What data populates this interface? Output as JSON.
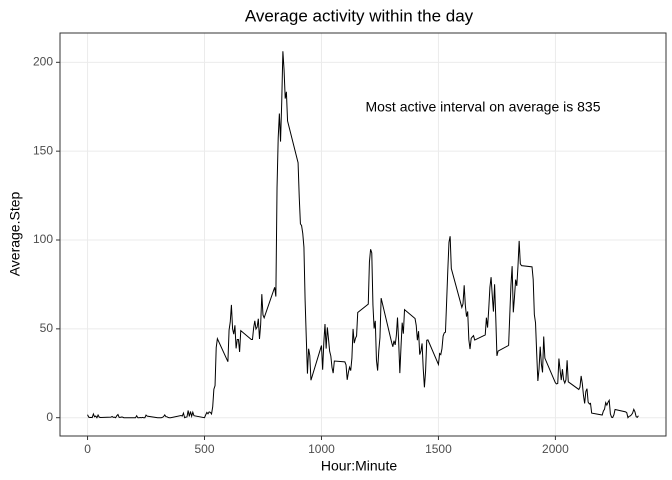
{
  "chart_data": {
    "type": "line",
    "title": "Average activity within the day",
    "x_label": "Hour:Minute",
    "y_label": "Average.Step",
    "annotation": "Most active interval on average is  835",
    "color": "#000000",
    "grid": true,
    "xlim": [
      -117.75,
      2472.75
    ],
    "xticks": [
      0,
      500,
      1000,
      1500,
      2000
    ],
    "ylim": [
      -10.3,
      216.5
    ],
    "yticks": [
      0,
      50,
      100,
      150,
      200
    ],
    "x": [
      0,
      5,
      10,
      15,
      20,
      25,
      30,
      35,
      40,
      45,
      50,
      55,
      100,
      105,
      110,
      115,
      120,
      125,
      130,
      135,
      140,
      145,
      150,
      155,
      200,
      205,
      210,
      215,
      220,
      225,
      230,
      235,
      240,
      245,
      250,
      255,
      300,
      305,
      310,
      315,
      320,
      325,
      330,
      335,
      340,
      345,
      350,
      355,
      400,
      405,
      410,
      415,
      420,
      425,
      430,
      435,
      440,
      445,
      450,
      455,
      500,
      505,
      510,
      515,
      520,
      525,
      530,
      535,
      540,
      545,
      550,
      555,
      600,
      605,
      610,
      615,
      620,
      625,
      630,
      635,
      640,
      645,
      650,
      655,
      700,
      705,
      710,
      715,
      720,
      725,
      730,
      735,
      740,
      745,
      750,
      755,
      800,
      805,
      810,
      815,
      820,
      825,
      830,
      835,
      840,
      845,
      850,
      855,
      900,
      905,
      910,
      915,
      920,
      925,
      930,
      935,
      940,
      945,
      950,
      955,
      1000,
      1005,
      1010,
      1015,
      1020,
      1025,
      1030,
      1035,
      1040,
      1045,
      1050,
      1055,
      1100,
      1105,
      1110,
      1115,
      1120,
      1125,
      1130,
      1135,
      1140,
      1145,
      1150,
      1155,
      1200,
      1205,
      1210,
      1215,
      1220,
      1225,
      1230,
      1235,
      1240,
      1245,
      1250,
      1255,
      1300,
      1305,
      1310,
      1315,
      1320,
      1325,
      1330,
      1335,
      1340,
      1345,
      1350,
      1355,
      1400,
      1405,
      1410,
      1415,
      1420,
      1425,
      1430,
      1435,
      1440,
      1445,
      1450,
      1455,
      1500,
      1505,
      1510,
      1515,
      1520,
      1525,
      1530,
      1535,
      1540,
      1545,
      1550,
      1555,
      1600,
      1605,
      1610,
      1615,
      1620,
      1625,
      1630,
      1635,
      1640,
      1645,
      1650,
      1655,
      1700,
      1705,
      1710,
      1715,
      1720,
      1725,
      1730,
      1735,
      1740,
      1745,
      1750,
      1755,
      1800,
      1805,
      1810,
      1815,
      1820,
      1825,
      1830,
      1835,
      1840,
      1845,
      1850,
      1855,
      1900,
      1905,
      1910,
      1915,
      1920,
      1925,
      1930,
      1935,
      1940,
      1945,
      1950,
      1955,
      2000,
      2005,
      2010,
      2015,
      2020,
      2025,
      2030,
      2035,
      2040,
      2045,
      2050,
      2055,
      2100,
      2105,
      2110,
      2115,
      2120,
      2125,
      2130,
      2135,
      2140,
      2145,
      2150,
      2155,
      2200,
      2205,
      2210,
      2215,
      2220,
      2225,
      2230,
      2235,
      2240,
      2245,
      2250,
      2255,
      2300,
      2305,
      2310,
      2315,
      2320,
      2325,
      2330,
      2335,
      2340,
      2345,
      2350,
      2355
    ],
    "values": [
      1.7,
      0.3,
      0.1,
      0.2,
      0.1,
      2.1,
      0.5,
      0.9,
      0,
      1.5,
      0.3,
      0.1,
      0.3,
      0.7,
      0.2,
      0.3,
      0,
      1.1,
      1.8,
      0.2,
      0.2,
      0.4,
      0.3,
      0,
      0,
      0,
      1.1,
      0,
      0,
      0.1,
      0,
      0.2,
      0,
      0,
      1.5,
      0.9,
      0,
      0,
      0,
      0,
      0.2,
      0.6,
      1.6,
      0.6,
      0.5,
      0.1,
      0,
      0,
      1.2,
      0.9,
      2.6,
      0,
      0.3,
      0.4,
      4.1,
      0.7,
      3.5,
      0.8,
      3.1,
      1.1,
      0,
      1.6,
      3,
      2.2,
      3.3,
      3,
      2.1,
      6.1,
      16,
      18,
      39.5,
      44.5,
      31.5,
      49.3,
      53.8,
      63.5,
      50,
      47,
      52,
      39,
      44,
      44,
      37,
      49,
      44,
      44,
      50.5,
      54.5,
      49.9,
      51,
      55.7,
      44.3,
      52.3,
      69.5,
      57.8,
      56.2,
      73.4,
      68.2,
      129.4,
      157.5,
      171.2,
      155.4,
      177.3,
      206.2,
      195.9,
      179.6,
      183.4,
      167,
      143.5,
      124,
      109.1,
      108.1,
      103.7,
      95.97,
      66.2,
      45.2,
      24.8,
      38.8,
      34.98,
      21.1,
      40.6,
      26.98,
      42.4,
      52.7,
      38.9,
      50.8,
      44.3,
      37.4,
      34.7,
      28.3,
      25.1,
      31.9,
      31.4,
      29.7,
      21.3,
      25.5,
      28.4,
      26.5,
      33.4,
      49.98,
      42,
      44.6,
      46,
      59.2,
      63.9,
      87.7,
      94.8,
      92.8,
      63.4,
      50.2,
      54.5,
      32.4,
      26.5,
      37.7,
      45.1,
      67.3,
      42.3,
      39.9,
      43.3,
      40.98,
      46.2,
      56.4,
      42.8,
      25.1,
      39.97,
      53.5,
      47.3,
      60.8,
      55.8,
      51.96,
      43.6,
      48.7,
      35.5,
      37.5,
      41.8,
      27.5,
      17.1,
      26.1,
      43.6,
      43.8,
      30,
      36.1,
      35.5,
      38.8,
      45.96,
      47.75,
      48.1,
      65.3,
      82.9,
      98.7,
      102.1,
      83.96,
      62.1,
      64.1,
      74.5,
      63.2,
      56.9,
      59.8,
      43.9,
      38.6,
      44.7,
      45.5,
      46.2,
      43.7,
      46.6,
      56.3,
      50.7,
      61.2,
      73.4,
      79.1,
      68.9,
      59.7,
      75.1,
      56.5,
      34.8,
      37.5,
      40.7,
      58,
      74.7,
      85.3,
      59.3,
      67.8,
      77.7,
      74.2,
      85.3,
      99.5,
      86.6,
      85.6,
      84.9,
      77.8,
      58,
      53.4,
      36.3,
      20.7,
      27.4,
      40,
      30.2,
      25.5,
      45.7,
      33.5,
      19.6,
      19,
      19.3,
      33.3,
      26.8,
      21.2,
      27.3,
      21.3,
      19.5,
      21.3,
      32.3,
      20.2,
      15.9,
      17.2,
      23.5,
      19.2,
      12.5,
      8,
      14.7,
      16.3,
      8.7,
      7.8,
      8.1,
      2.6,
      1.5,
      3.7,
      4.8,
      8.5,
      7.1,
      8.7,
      9.8,
      2.2,
      0.3,
      0.1,
      1.6,
      4.6,
      3.3,
      2.8,
      0,
      0.8,
      1,
      1.6,
      2.6,
      4.7,
      3.3,
      0.6,
      0.2,
      1.1
    ]
  }
}
